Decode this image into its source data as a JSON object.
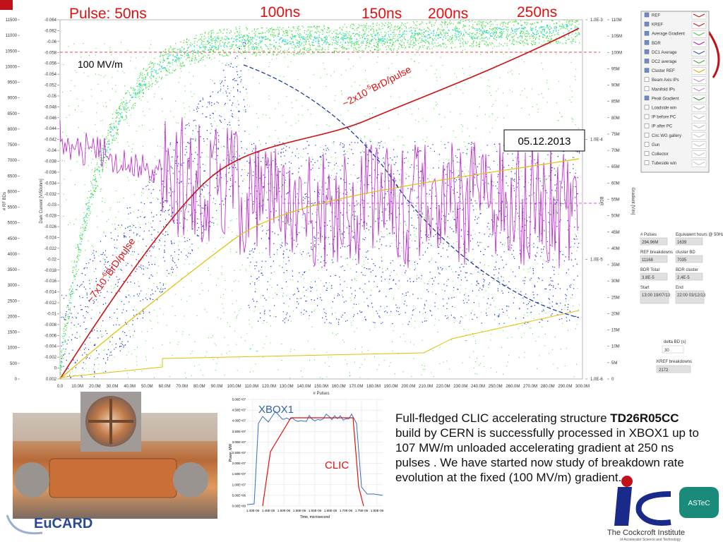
{
  "slide": {
    "annotations": {
      "pulse50": "Pulse: 50ns",
      "pulse100": "100ns",
      "pulse150": "150ns",
      "pulse200": "200ns",
      "pulse250": "250ns",
      "gradient": "100 MV/m",
      "date": "05.12.2013",
      "rate_high": {
        "base": "~2x10",
        "exp": "-5",
        "unit": "BrD/pulse"
      },
      "rate_low": {
        "base": "~7x10",
        "exp": "-6",
        "unit": "BrD/pulse"
      }
    },
    "axis_titles": {
      "rf_bds": "# RF BDs",
      "dark_current": "Dark Current [V/50ohm]",
      "bdr": "BDR",
      "gradient": "Gradient [V/m]",
      "pulses": "# Pulses"
    },
    "rf_bd_ticks": [
      "11500",
      "11000",
      "10500",
      "10000",
      "9500",
      "9000",
      "8500",
      "8000",
      "7500",
      "7000",
      "6500",
      "6000",
      "5500",
      "5000",
      "4500",
      "4000",
      "3500",
      "3000",
      "2500",
      "2000",
      "1500",
      "1000",
      "500",
      "0"
    ],
    "dark_current_ticks": [
      "-0.064",
      "-0.062",
      "-0.06",
      "-0.058",
      "-0.056",
      "-0.054",
      "-0.052",
      "-0.05",
      "-0.048",
      "-0.046",
      "-0.044",
      "-0.042",
      "-0.04",
      "-0.038",
      "-0.036",
      "-0.034",
      "-0.032",
      "-0.03",
      "-0.028",
      "-0.026",
      "-0.024",
      "-0.022",
      "-0.02",
      "-0.018",
      "-0.016",
      "-0.014",
      "-0.012",
      "-0.01",
      "-0.008",
      "-0.006",
      "-0.004",
      "-0.002",
      "0",
      "0.002"
    ],
    "bdr_ticks": [
      "1.0E-3",
      "1.0E-4",
      "1.0E-5",
      "1.0E-6"
    ],
    "gradient_ticks": [
      "110M",
      "105M",
      "100M",
      "95M",
      "90M",
      "85M",
      "80M",
      "75M",
      "70M",
      "65M",
      "60M",
      "55M",
      "50M",
      "45M",
      "40M",
      "35M",
      "30M",
      "25M",
      "20M",
      "15M",
      "10M",
      "5M",
      "0"
    ],
    "pulse_ticks": [
      "0.0",
      "10.0M",
      "20.0M",
      "30.0M",
      "40.0M",
      "50.0M",
      "60.0M",
      "70.0M",
      "80.0M",
      "90.0M",
      "100.0M",
      "110.0M",
      "120.0M",
      "130.0M",
      "140.0M",
      "150.0M",
      "160.0M",
      "170.0M",
      "180.0M",
      "190.0M",
      "200.0M",
      "210.0M",
      "220.0M",
      "230.0M",
      "240.0M",
      "250.0M",
      "260.0M",
      "270.0M",
      "280.0M",
      "290.0M",
      "300.0M"
    ],
    "legend": [
      {
        "name": "REF",
        "checked": true,
        "color": "#d00000"
      },
      {
        "name": "KREF",
        "checked": true,
        "color": "#d00000"
      },
      {
        "name": "Average Gradient",
        "checked": true,
        "color": "#40c040"
      },
      {
        "name": "BDR",
        "checked": true,
        "color": "#c000c0"
      },
      {
        "name": "DC1 Average",
        "checked": true,
        "color": "#2040c0"
      },
      {
        "name": "DC2 average",
        "checked": true,
        "color": "#40a040"
      },
      {
        "name": "Cluster REF",
        "checked": true,
        "color": "#e0a000"
      },
      {
        "name": "Beam Axis IPs",
        "checked": false,
        "color": "#c080c0"
      },
      {
        "name": "Manifold IPs",
        "checked": false,
        "color": "#c080c0"
      },
      {
        "name": "Peak Gradient",
        "checked": true,
        "color": "#208020"
      },
      {
        "name": "Loadside win",
        "checked": false,
        "color": "#c0a0a0"
      },
      {
        "name": "IP before PC",
        "checked": false,
        "color": "#a0c0a0"
      },
      {
        "name": "IP after PC",
        "checked": false,
        "color": "#a0c0a0"
      },
      {
        "name": "Circ WG gallery",
        "checked": false,
        "color": "#c0c0c0"
      },
      {
        "name": "Gun",
        "checked": false,
        "color": "#c0c0c0"
      },
      {
        "name": "Collector",
        "checked": false,
        "color": "#c0c0c0"
      },
      {
        "name": "Tubeside win",
        "checked": false,
        "color": "#c0c0c0"
      }
    ],
    "panel": [
      {
        "label": "# Pulses",
        "value": "294.96M"
      },
      {
        "label": "Equivalent hours @ 50Hz",
        "value": "1639"
      },
      {
        "label": "REF breakdowns",
        "value": "11168"
      },
      {
        "label": "cluster BD",
        "value": "7035"
      },
      {
        "label": "BDR Total",
        "value": "3.8E-5"
      },
      {
        "label": "BDR cluster",
        "value": "2.4E-5"
      },
      {
        "label": "Start",
        "value": "13:00 19/07/13"
      },
      {
        "label": "End",
        "value": "22:00 03/12/13"
      }
    ],
    "delta": {
      "label": "delta BD (s)",
      "value": "30"
    },
    "kref": {
      "label": "KREF breakdowns",
      "value": "2172"
    },
    "inset": {
      "series_label": "XBOX1",
      "clic_label": "CLIC",
      "y_title": "Power, MW",
      "x_title": "Time, microsecond",
      "yticks": [
        "5.00E+07",
        "4.50E+07",
        "4.00E+07",
        "3.50E+07",
        "3.00E+07",
        "2.50E+07",
        "2.00E+07",
        "1.50E+07",
        "1.00E+07",
        "5.00E+06",
        "0.00E+00"
      ],
      "xticks": [
        "1.40E-06",
        "1.45E-06",
        "1.50E-06",
        "1.55E-06",
        "1.60E-06",
        "1.65E-06",
        "1.70E-06",
        "1.75E-06",
        "1.80E-06"
      ]
    },
    "text": {
      "lead": "Full-fledged CLIC accelerating structure ",
      "bold": "TD26R05CC",
      "rest": " build by CERN is successfully processed in XBOX1 up to 107 MW/m unloaded accelerating gradient at 250 ns pulses . We have started now study of breakdown rate evolution at the fixed (100 MV/m) gradient."
    },
    "logos": {
      "eucard": "EuCARD",
      "astec": "ASTeC",
      "cockcroft": "The Cockcroft Institute",
      "cockcroft_sub": "of Accelerator Science and Technology"
    }
  }
}
